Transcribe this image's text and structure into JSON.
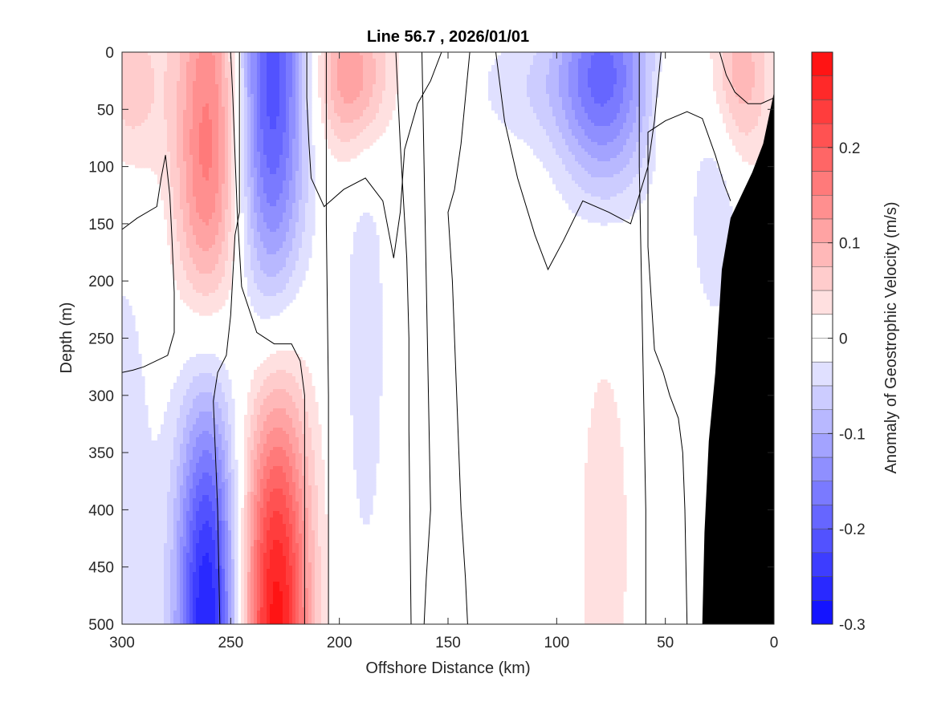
{
  "chart_data": {
    "type": "heatmap",
    "title": "Line 56.7 , 2026/01/01",
    "xlabel": "Offshore Distance (km)",
    "ylabel": "Depth (m)",
    "colorbar_label": "Anomaly of Geostrophic Velocity (m/s)",
    "xlim": [
      300,
      0
    ],
    "ylim": [
      0,
      500
    ],
    "x_direction": "reversed",
    "y_direction": "reversed",
    "x_ticks": [
      300,
      250,
      200,
      150,
      100,
      50,
      0
    ],
    "y_ticks": [
      0,
      50,
      100,
      150,
      200,
      250,
      300,
      350,
      400,
      450,
      500
    ],
    "clim": [
      -0.3,
      0.3
    ],
    "contour_step": 0.025,
    "colorbar_ticks": [
      {
        "value": 0.2,
        "label": "0.2"
      },
      {
        "value": 0.1,
        "label": "0.1"
      },
      {
        "value": 0,
        "label": "0"
      },
      {
        "value": -0.1,
        "label": "-0.1"
      },
      {
        "value": -0.2,
        "label": "-0.2"
      },
      {
        "value": -0.3,
        "label": "-0.3"
      }
    ],
    "colors": {
      "positive": "#ff0000",
      "negative": "#0000ff",
      "zero": "#ffffff",
      "bathymetry": "#000000"
    },
    "features": [
      {
        "name": "upper-positive-jet-1",
        "x": 260,
        "depth": 40,
        "sx": 11,
        "sd": 150,
        "amp": 0.13
      },
      {
        "name": "upper-positive-jet-2",
        "x": 262,
        "depth": 130,
        "sx": 10,
        "sd": 80,
        "amp": 0.05
      },
      {
        "name": "upper-positive-west",
        "x": 296,
        "depth": 30,
        "sx": 11,
        "sd": 60,
        "amp": 0.07
      },
      {
        "name": "upper-negative-jet",
        "x": 231,
        "depth": 25,
        "sx": 11,
        "sd": 160,
        "amp": -0.22
      },
      {
        "name": "upper-positive-eddy",
        "x": 194,
        "depth": 20,
        "sx": 12,
        "sd": 50,
        "amp": 0.13
      },
      {
        "name": "deep-negative-jet",
        "x": 261,
        "depth": 500,
        "sx": 10,
        "sd": 150,
        "amp": -0.28
      },
      {
        "name": "deep-positive-jet",
        "x": 229,
        "depth": 500,
        "sx": 11,
        "sd": 160,
        "amp": 0.29
      },
      {
        "name": "weak-negative-band",
        "x": 188,
        "depth": 250,
        "sx": 8,
        "sd": 180,
        "amp": -0.038
      },
      {
        "name": "far-west-negative",
        "x": 300,
        "depth": 400,
        "sx": 12,
        "sd": 200,
        "amp": -0.04
      },
      {
        "name": "surface-negative-mid",
        "x": 112,
        "depth": 30,
        "sx": 20,
        "sd": 40,
        "amp": -0.04
      },
      {
        "name": "surface-negative-eddy",
        "x": 78,
        "depth": 20,
        "sx": 15,
        "sd": 70,
        "amp": -0.18
      },
      {
        "name": "deep-positive-mid",
        "x": 78,
        "depth": 430,
        "sx": 10,
        "sd": 150,
        "amp": 0.04
      },
      {
        "name": "nearshore-positive",
        "x": 15,
        "depth": 20,
        "sx": 10,
        "sd": 55,
        "amp": 0.09
      },
      {
        "name": "nearshore-positive-small",
        "x": 50,
        "depth": 50,
        "sx": 4,
        "sd": 30,
        "amp": 0.04
      },
      {
        "name": "nearshore-negative",
        "x": 27,
        "depth": 140,
        "sx": 8,
        "sd": 70,
        "amp": -0.05
      }
    ],
    "bathymetry": [
      {
        "x": 0,
        "depth": 35
      },
      {
        "x": 5,
        "depth": 80
      },
      {
        "x": 10,
        "depth": 105
      },
      {
        "x": 20,
        "depth": 145
      },
      {
        "x": 24,
        "depth": 190
      },
      {
        "x": 27,
        "depth": 280
      },
      {
        "x": 30,
        "depth": 340
      },
      {
        "x": 32,
        "depth": 420
      },
      {
        "x": 33,
        "depth": 500
      }
    ],
    "zero_contours": [
      [
        [
          280,
          90
        ],
        [
          282,
          110
        ],
        [
          284,
          135
        ],
        [
          293,
          145
        ],
        [
          300,
          155
        ]
      ],
      [
        [
          280,
          90
        ],
        [
          278,
          125
        ],
        [
          277,
          165
        ],
        [
          276,
          210
        ],
        [
          276,
          245
        ],
        [
          279,
          265
        ],
        [
          290,
          275
        ],
        [
          295,
          278
        ],
        [
          300,
          280
        ]
      ],
      [
        [
          250,
          0
        ],
        [
          249,
          40
        ],
        [
          248,
          90
        ],
        [
          247,
          140
        ],
        [
          245,
          205
        ],
        [
          238,
          245
        ],
        [
          230,
          255
        ],
        [
          222,
          255
        ],
        [
          218,
          270
        ],
        [
          216,
          300
        ],
        [
          216,
          400
        ],
        [
          216,
          500
        ]
      ],
      [
        [
          246,
          0
        ],
        [
          246,
          40
        ],
        [
          246,
          90
        ],
        [
          246,
          140
        ],
        [
          248,
          160
        ],
        [
          250,
          230
        ],
        [
          252,
          265
        ],
        [
          256,
          280
        ],
        [
          258,
          305
        ],
        [
          256,
          400
        ],
        [
          255,
          500
        ]
      ],
      [
        [
          215,
          0
        ],
        [
          215,
          40
        ],
        [
          214,
          80
        ],
        [
          213,
          110
        ],
        [
          207,
          135
        ],
        [
          198,
          120
        ],
        [
          188,
          110
        ],
        [
          180,
          130
        ],
        [
          175,
          180
        ],
        [
          172,
          140
        ],
        [
          170,
          85
        ],
        [
          164,
          45
        ],
        [
          158,
          25
        ],
        [
          153,
          0
        ]
      ],
      [
        [
          206,
          0
        ],
        [
          206,
          150
        ],
        [
          205,
          300
        ],
        [
          205,
          500
        ]
      ],
      [
        [
          174,
          0
        ],
        [
          172,
          80
        ],
        [
          169,
          180
        ],
        [
          168,
          250
        ],
        [
          168,
          330
        ],
        [
          167,
          500
        ]
      ],
      [
        [
          162,
          0
        ],
        [
          161,
          100
        ],
        [
          160,
          200
        ],
        [
          159,
          300
        ],
        [
          158,
          400
        ],
        [
          160,
          460
        ],
        [
          161,
          500
        ]
      ],
      [
        [
          140,
          0
        ],
        [
          144,
          80
        ],
        [
          147,
          120
        ],
        [
          150,
          140
        ],
        [
          148,
          200
        ],
        [
          146,
          300
        ],
        [
          144,
          400
        ],
        [
          142,
          460
        ],
        [
          141,
          500
        ]
      ],
      [
        [
          128,
          0
        ],
        [
          124,
          60
        ],
        [
          118,
          110
        ],
        [
          110,
          160
        ],
        [
          104,
          190
        ],
        [
          97,
          165
        ],
        [
          88,
          130
        ],
        [
          76,
          140
        ],
        [
          66,
          150
        ],
        [
          58,
          100
        ],
        [
          55,
          60
        ],
        [
          52,
          0
        ]
      ],
      [
        [
          62,
          0
        ],
        [
          62,
          100
        ],
        [
          61,
          200
        ],
        [
          60,
          300
        ],
        [
          59,
          400
        ],
        [
          59,
          500
        ]
      ],
      [
        [
          40,
          500
        ],
        [
          41,
          400
        ],
        [
          42,
          350
        ],
        [
          44,
          320
        ],
        [
          48,
          300
        ],
        [
          51,
          280
        ],
        [
          55,
          260
        ],
        [
          58,
          170
        ],
        [
          58,
          100
        ],
        [
          58,
          70
        ],
        [
          50,
          60
        ],
        [
          40,
          52
        ],
        [
          33,
          58
        ],
        [
          27,
          90
        ],
        [
          23,
          115
        ],
        [
          20,
          130
        ]
      ],
      [
        [
          25,
          0
        ],
        [
          22,
          20
        ],
        [
          18,
          35
        ],
        [
          12,
          45
        ],
        [
          6,
          45
        ],
        [
          0,
          40
        ]
      ]
    ]
  }
}
